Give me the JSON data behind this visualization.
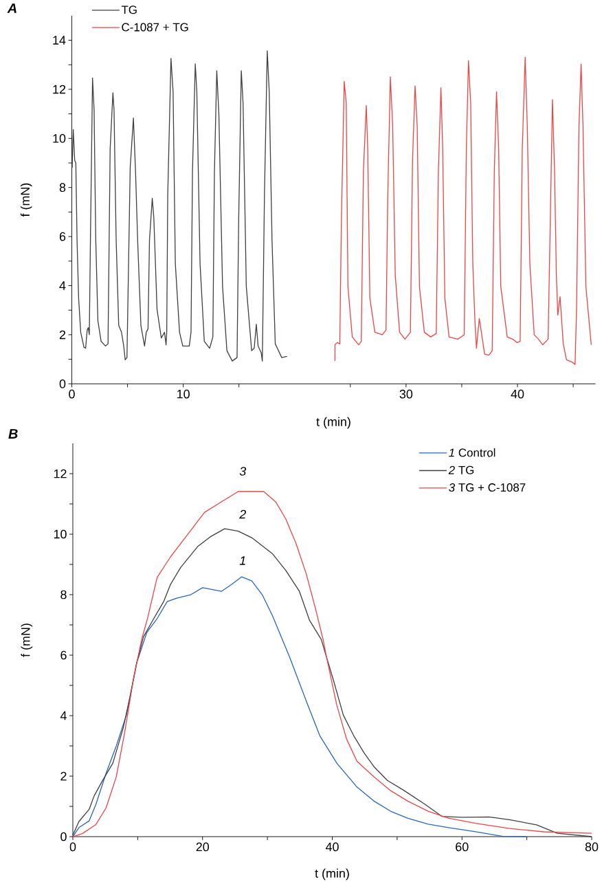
{
  "chart_data": [
    {
      "type": "line",
      "title": "A",
      "xlabel": "t (min)",
      "ylabel": "f (mN)",
      "xlim": [
        0,
        47.0
      ],
      "xticks": [
        0,
        {
          "value": 5,
          "label": null
        },
        10,
        {
          "value": 15,
          "label": null
        },
        {
          "value": 25,
          "label": null
        },
        30,
        {
          "value": 35,
          "label": null
        },
        40,
        {
          "value": 45,
          "label": null
        }
      ],
      "ylim": [
        0,
        15
      ],
      "yticks": [
        0,
        {
          "value": 1,
          "label": null
        },
        2,
        {
          "value": 3,
          "label": null
        },
        4,
        {
          "value": 5,
          "label": null
        },
        6,
        {
          "value": 7,
          "label": null
        },
        8,
        {
          "value": 9,
          "label": null
        },
        10,
        {
          "value": 11,
          "label": null
        },
        12,
        {
          "value": 13,
          "label": null
        },
        14
      ],
      "legend": "top left",
      "series": [
        {
          "name": "TG",
          "color": "#3f3f3f",
          "x": [
            0.03,
            0.13,
            0.26,
            0.36,
            0.47,
            0.61,
            0.8,
            1.09,
            1.24,
            1.38,
            1.48,
            1.57,
            1.67,
            1.86,
            2.0,
            2.15,
            2.34,
            2.63,
            3.02,
            3.25,
            3.44,
            3.69,
            3.79,
            3.98,
            4.21,
            4.46,
            4.66,
            4.79,
            4.95,
            5.24,
            5.53,
            5.72,
            5.91,
            6.2,
            6.53,
            6.68,
            6.84,
            6.97,
            7.22,
            7.36,
            7.65,
            8.03,
            8.32,
            8.46,
            8.52,
            8.61,
            8.9,
            9.09,
            9.29,
            9.67,
            9.96,
            10.54,
            10.7,
            10.83,
            11.08,
            11.22,
            11.51,
            11.89,
            12.37,
            12.66,
            12.8,
            13.01,
            13.2,
            13.53,
            13.92,
            14.4,
            14.83,
            14.98,
            15.21,
            15.37,
            15.66,
            16.14,
            16.37,
            16.56,
            16.72,
            17.0,
            17.1,
            17.29,
            17.54,
            17.72,
            17.97,
            18.26,
            18.84,
            19.32
          ],
          "values": [
            8.8,
            10.36,
            9.1,
            9.0,
            5.84,
            3.5,
            2.1,
            1.49,
            1.45,
            2.19,
            2.29,
            2.0,
            5.84,
            12.46,
            11.16,
            5.84,
            2.57,
            1.73,
            1.54,
            1.63,
            9.57,
            11.86,
            11.16,
            5.84,
            2.38,
            2.1,
            1.54,
            0.98,
            1.07,
            8.82,
            10.83,
            8.64,
            5.84,
            2.38,
            1.54,
            2.1,
            2.24,
            5.84,
            7.56,
            6.77,
            3.03,
            1.87,
            2.1,
            1.59,
            2.1,
            7.7,
            13.26,
            11.9,
            4.9,
            2.1,
            1.54,
            1.54,
            2.1,
            8.64,
            13.04,
            11.9,
            4.9,
            1.73,
            1.45,
            1.91,
            8.64,
            12.76,
            10.97,
            3.97,
            1.35,
            0.93,
            1.07,
            6.77,
            12.76,
            11.44,
            3.97,
            1.35,
            1.45,
            2.43,
            1.54,
            1.26,
            0.93,
            7.7,
            13.57,
            11.9,
            5.84,
            1.63,
            1.07,
            1.12
          ]
        },
        {
          "name": "C-1087 + TG",
          "color": "#ee4444",
          "x": [
            23.62,
            23.62,
            23.82,
            24.05,
            24.2,
            24.45,
            24.63,
            24.78,
            25.17,
            25.75,
            25.98,
            26.17,
            26.43,
            26.56,
            26.75,
            27.2,
            27.87,
            28.2,
            28.36,
            28.59,
            28.8,
            29.03,
            29.42,
            29.9,
            30.39,
            30.58,
            30.81,
            31.0,
            31.2,
            31.64,
            32.22,
            32.71,
            32.9,
            33.13,
            33.29,
            33.48,
            33.86,
            34.64,
            35.22,
            35.41,
            35.6,
            35.8,
            35.99,
            36.18,
            36.32,
            36.57,
            36.76,
            37.05,
            37.44,
            37.73,
            37.92,
            38.12,
            38.31,
            38.5,
            39.08,
            39.57,
            39.95,
            40.24,
            40.43,
            40.69,
            40.88,
            41.11,
            41.5,
            41.88,
            42.27,
            42.75,
            42.95,
            43.14,
            43.33,
            43.49,
            43.62,
            43.82,
            44.11,
            44.4,
            44.88,
            45.17,
            45.3,
            45.52,
            45.71,
            45.88,
            46.14,
            46.62
          ],
          "values": [
            0.93,
            1.59,
            1.68,
            1.63,
            6.77,
            12.32,
            11.44,
            3.97,
            1.91,
            1.59,
            1.73,
            8.64,
            11.34,
            9.57,
            3.5,
            2.1,
            2.0,
            2.19,
            7.7,
            12.51,
            10.5,
            4.43,
            2.1,
            1.82,
            2.1,
            9.1,
            12.14,
            10.5,
            3.97,
            2.1,
            1.91,
            2.05,
            8.64,
            12.06,
            9.57,
            3.5,
            1.91,
            1.82,
            2.0,
            9.57,
            13.17,
            11.44,
            4.9,
            2.57,
            1.45,
            2.66,
            2.1,
            1.21,
            1.17,
            1.35,
            8.64,
            11.9,
            9.57,
            3.97,
            1.91,
            1.82,
            1.68,
            1.73,
            9.57,
            13.31,
            10.5,
            4.9,
            2.0,
            1.82,
            1.59,
            1.82,
            6.77,
            11.58,
            8.64,
            4.43,
            2.8,
            3.55,
            1.63,
            0.98,
            0.89,
            0.79,
            3.03,
            10.5,
            13.03,
            10.5,
            3.97,
            1.59
          ]
        }
      ]
    },
    {
      "type": "line",
      "title": "B",
      "xlabel": "t (min)",
      "ylabel": "f (mN)",
      "xlim": [
        0,
        80
      ],
      "xticks": [
        0,
        {
          "value": 10,
          "label": null
        },
        20,
        {
          "value": 30,
          "label": null
        },
        40,
        {
          "value": 50,
          "label": null
        },
        60,
        {
          "value": 70,
          "label": null
        },
        80
      ],
      "ylim": [
        0,
        13
      ],
      "yticks": [
        0,
        {
          "value": 1,
          "label": null
        },
        2,
        {
          "value": 3,
          "label": null
        },
        4,
        {
          "value": 5,
          "label": null
        },
        6,
        {
          "value": 7,
          "label": null
        },
        8,
        {
          "value": 9,
          "label": null
        },
        10,
        {
          "value": 11,
          "label": null
        },
        12
      ],
      "legend": "top right",
      "annotations": [
        "1",
        "2",
        "3"
      ],
      "series": [
        {
          "name": "*1* Control",
          "color": "#2566c0",
          "x": [
            0,
            0.94,
            2.51,
            3.56,
            5.12,
            6.7,
            8.26,
            9.83,
            11.4,
            12.97,
            14.54,
            16.1,
            18.2,
            20.0,
            22.9,
            24.5,
            26.04,
            27.6,
            29.2,
            30.75,
            32.3,
            33.4,
            36.0,
            38.07,
            40.7,
            43.8,
            46.4,
            49.0,
            51.6,
            54.8,
            57.9,
            62.1,
            66.3,
            69.9
          ],
          "values": [
            0,
            0.3,
            0.52,
            1.07,
            2.09,
            3.0,
            4.02,
            5.73,
            6.75,
            7.2,
            7.77,
            7.89,
            8.0,
            8.23,
            8.11,
            8.34,
            8.59,
            8.45,
            8.0,
            7.32,
            6.52,
            5.95,
            4.48,
            3.34,
            2.43,
            1.64,
            1.18,
            0.84,
            0.61,
            0.41,
            0.3,
            0.16,
            0.01,
            0
          ]
        },
        {
          "name": "*2* TG",
          "color": "#3f3f3f",
          "x": [
            0,
            0.94,
            2.51,
            3.29,
            4.6,
            6.17,
            7.74,
            8.78,
            9.83,
            10.88,
            12.45,
            14.0,
            15.06,
            16.63,
            19.24,
            21.33,
            23.4,
            25.5,
            27.61,
            30.75,
            32.84,
            34.93,
            36.5,
            38.3,
            40.2,
            41.7,
            43.3,
            44.9,
            46.4,
            48.5,
            51.1,
            54.3,
            56.9,
            60.0,
            64.2,
            67.3,
            71.5,
            74.7,
            80.0
          ],
          "values": [
            0.05,
            0.5,
            0.9,
            1.35,
            1.86,
            2.43,
            3.57,
            4.59,
            5.73,
            6.6,
            7.2,
            7.77,
            8.34,
            8.9,
            9.59,
            9.93,
            10.18,
            10.1,
            9.88,
            9.36,
            8.8,
            8.11,
            7.15,
            6.52,
            5.16,
            4.02,
            3.34,
            2.77,
            2.32,
            1.86,
            1.52,
            1.07,
            0.67,
            0.64,
            0.65,
            0.56,
            0.39,
            0.11,
            0
          ]
        },
        {
          "name": "*3* TG + C-1087",
          "color": "#ee4444",
          "x": [
            0,
            1.46,
            3.56,
            5.12,
            6.7,
            8.0,
            9.3,
            10.61,
            11.5,
            13.0,
            15.06,
            17.67,
            20.3,
            22.9,
            25.5,
            27.61,
            29.44,
            31.27,
            32.84,
            34.4,
            36.0,
            37.54,
            38.6,
            39.1,
            40.68,
            42.2,
            43.82,
            46.43,
            49.0,
            51.6,
            54.8,
            57.9,
            62.1,
            67.3,
            72.6,
            80.0
          ],
          "values": [
            0,
            0.1,
            0.4,
            0.95,
            1.98,
            3.45,
            5.16,
            6.52,
            7.2,
            8.57,
            9.25,
            9.98,
            10.72,
            11.07,
            11.41,
            11.41,
            11.41,
            11.07,
            10.5,
            9.7,
            8.68,
            7.43,
            6.5,
            5.95,
            4.36,
            3.23,
            2.49,
            1.98,
            1.52,
            1.18,
            0.84,
            0.61,
            0.44,
            0.27,
            0.16,
            0.11
          ]
        }
      ]
    }
  ]
}
